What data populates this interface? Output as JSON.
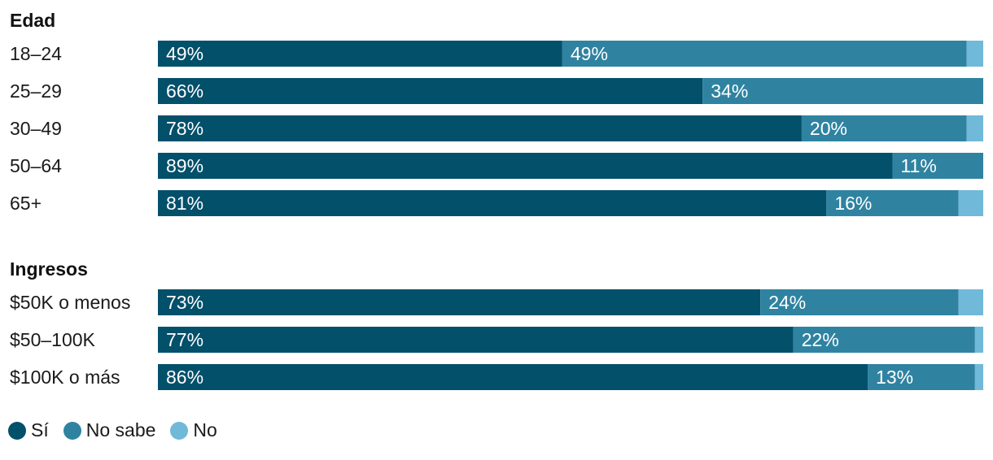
{
  "chart_data": {
    "type": "bar",
    "orientation": "horizontal",
    "stacked": true,
    "xlim": [
      0,
      100
    ],
    "colors": {
      "si": "#03506b",
      "no_sabe": "#2f83a1",
      "no": "#71b9d8"
    },
    "legend": {
      "position": "bottom-left",
      "items": [
        {
          "key": "si",
          "label": "Sí"
        },
        {
          "key": "no_sabe",
          "label": "No sabe"
        },
        {
          "key": "no",
          "label": "No"
        }
      ]
    },
    "groups": [
      {
        "title": "Edad",
        "rows": [
          {
            "label": "18–24",
            "si": 49,
            "no_sabe": 49,
            "no": 2,
            "si_label": "49%",
            "no_sabe_label": "49%"
          },
          {
            "label": "25–29",
            "si": 66,
            "no_sabe": 34,
            "no": 0,
            "si_label": "66%",
            "no_sabe_label": "34%"
          },
          {
            "label": "30–49",
            "si": 78,
            "no_sabe": 20,
            "no": 2,
            "si_label": "78%",
            "no_sabe_label": "20%"
          },
          {
            "label": "50–64",
            "si": 89,
            "no_sabe": 11,
            "no": 0,
            "si_label": "89%",
            "no_sabe_label": "11%"
          },
          {
            "label": "65+",
            "si": 81,
            "no_sabe": 16,
            "no": 3,
            "si_label": "81%",
            "no_sabe_label": "16%"
          }
        ]
      },
      {
        "title": "Ingresos",
        "rows": [
          {
            "label": "$50K o menos",
            "si": 73,
            "no_sabe": 24,
            "no": 3,
            "si_label": "73%",
            "no_sabe_label": "24%"
          },
          {
            "label": "$50–100K",
            "si": 77,
            "no_sabe": 22,
            "no": 1,
            "si_label": "77%",
            "no_sabe_label": "22%"
          },
          {
            "label": "$100K o más",
            "si": 86,
            "no_sabe": 13,
            "no": 1,
            "si_label": "86%",
            "no_sabe_label": "13%"
          }
        ]
      }
    ]
  }
}
